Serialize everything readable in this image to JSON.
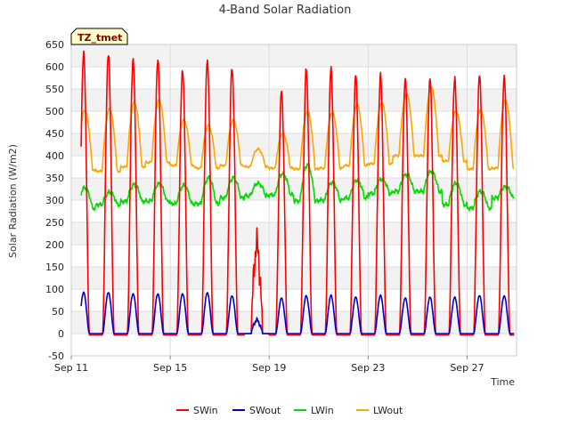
{
  "chart_data": {
    "type": "line",
    "title": "4-Band Solar Radiation",
    "xlabel": "Time",
    "ylabel": "Solar Radiation (W/m2)",
    "site_label": "TZ_tmet",
    "xlim": [
      11,
      29
    ],
    "ylim": [
      -50,
      650
    ],
    "x_ticks": [
      {
        "value": 11,
        "label": "Sep 11"
      },
      {
        "value": 15,
        "label": "Sep 15"
      },
      {
        "value": 19,
        "label": "Sep 19"
      },
      {
        "value": 23,
        "label": "Sep 23"
      },
      {
        "value": 27,
        "label": "Sep 27"
      }
    ],
    "y_ticks": [
      -50,
      0,
      50,
      100,
      150,
      200,
      250,
      300,
      350,
      400,
      450,
      500,
      550,
      600,
      650
    ],
    "grid": true,
    "legend_position": "bottom",
    "days": [
      11,
      12,
      13,
      14,
      15,
      16,
      17,
      18,
      19,
      20,
      21,
      22,
      23,
      24,
      25,
      26,
      27,
      28
    ],
    "series": [
      {
        "name": "SWin",
        "color": "#ff0000",
        "daily_peak": [
          632,
          632,
          620,
          620,
          595,
          615,
          598,
          0,
          545,
          592,
          593,
          580,
          580,
          572,
          572,
          575,
          585,
          580
        ]
      },
      {
        "name": "SWout",
        "color": "#0000cc",
        "daily_peak": [
          93,
          93,
          90,
          90,
          90,
          92,
          85,
          0,
          80,
          85,
          86,
          82,
          86,
          80,
          82,
          82,
          86,
          85
        ]
      },
      {
        "name": "LWin",
        "color": "#00dd00",
        "daily_peak": [
          328,
          318,
          335,
          337,
          333,
          350,
          350,
          338,
          360,
          380,
          340,
          345,
          348,
          358,
          365,
          338,
          320,
          330
        ],
        "daily_base": [
          282,
          290,
          297,
          298,
          292,
          292,
          305,
          310,
          312,
          298,
          300,
          305,
          315,
          320,
          320,
          290,
          282,
          305
        ]
      },
      {
        "name": "LWout",
        "color": "#ffa500",
        "daily_peak": [
          502,
          505,
          520,
          525,
          480,
          468,
          480,
          0,
          450,
          500,
          498,
          515,
          520,
          540,
          555,
          500,
          502,
          525
        ],
        "daily_base": [
          368,
          365,
          375,
          385,
          378,
          372,
          378,
          375,
          372,
          370,
          372,
          378,
          382,
          400,
          400,
          388,
          370,
          372
        ]
      }
    ]
  }
}
